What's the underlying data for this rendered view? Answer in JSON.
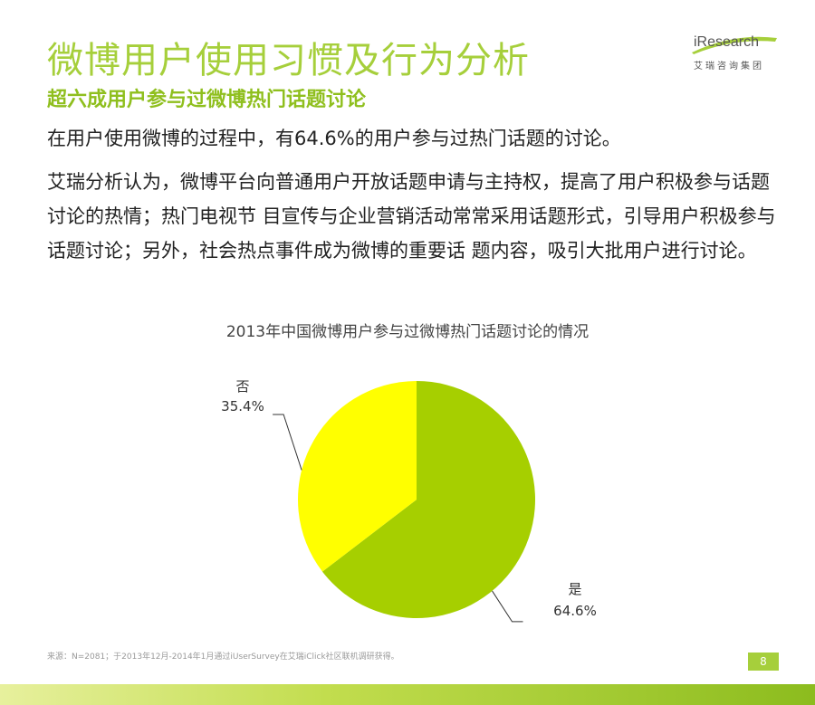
{
  "header": {
    "title": "微博用户使用习惯及行为分析",
    "subtitle": "超六成用户参与过微博热门话题讨论"
  },
  "logo": {
    "brand": "iResearch",
    "brand_cn": "艾瑞咨询集团"
  },
  "body": {
    "paragraph1": "在用户使用微博的过程中，有64.6%的用户参与过热门话题的讨论。",
    "paragraph2": "艾瑞分析认为，微博平台向普通用户开放话题申请与主持权，提高了用户积极参与话题讨论的热情；热门电视节 目宣传与企业营销活动常常采用话题形式，引导用户积极参与话题讨论；另外，社会热点事件成为微博的重要话 题内容，吸引大批用户进行讨论。"
  },
  "chart_data": {
    "type": "pie",
    "title": "2013年中国微博用户参与过微博热门话题讨论的情况",
    "slices": [
      {
        "label": "是",
        "value": 64.6,
        "value_label": "64.6%",
        "color": "#a6cf00"
      },
      {
        "label": "否",
        "value": 35.4,
        "value_label": "35.4%",
        "color": "#ffff00"
      }
    ]
  },
  "footer": {
    "source": "来源：N=2081；于2013年12月-2014年1月通过iUserSurvey在艾瑞iClick社区联机调研获得。",
    "page_number": "8"
  },
  "colors": {
    "accent": "#a6cf3b",
    "subtitle": "#8fbf1e"
  }
}
